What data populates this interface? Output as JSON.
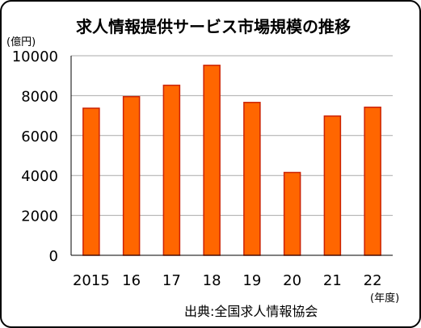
{
  "chart_data": {
    "type": "bar",
    "title": "求人情報提供サービス市場規模の推移",
    "ylabel": "(億円)",
    "xlabel": "(年度)",
    "categories": [
      "2015",
      "16",
      "17",
      "18",
      "19",
      "20",
      "21",
      "22"
    ],
    "values": [
      7370,
      7950,
      8520,
      9520,
      7660,
      4150,
      6980,
      7420
    ],
    "ylim": [
      0,
      10000
    ],
    "yticks": [
      "0",
      "2000",
      "4000",
      "6000",
      "8000",
      "10000"
    ],
    "grid": true,
    "source": "出典:全国求人情報協会",
    "colors": {
      "bar_fill": "#ff6600",
      "bar_stroke": "#cc2200",
      "grid": "#aaaaaa"
    }
  }
}
